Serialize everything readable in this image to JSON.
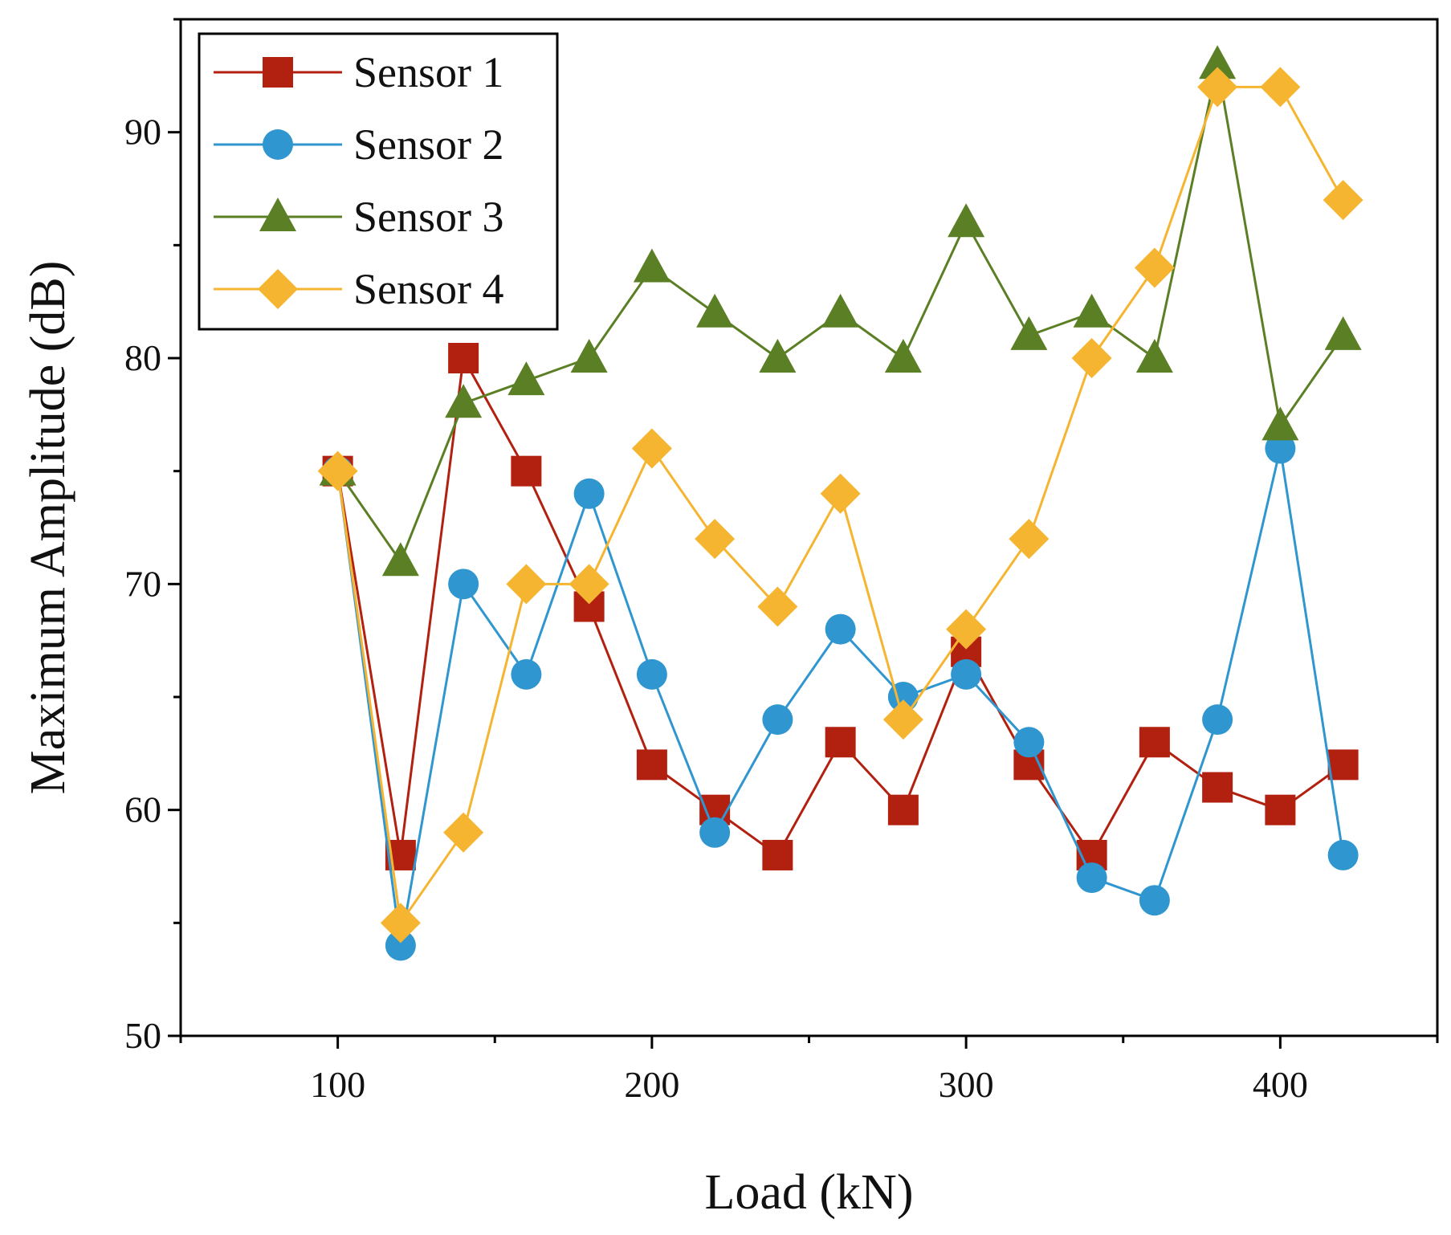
{
  "chart_data": {
    "type": "line",
    "title": "",
    "xlabel": "Load (kN)",
    "ylabel": "Maximum Amplitude (dB)",
    "xlim": [
      50,
      450
    ],
    "ylim": [
      50,
      95
    ],
    "xticks": [
      100,
      200,
      300,
      400
    ],
    "yticks": [
      50,
      60,
      70,
      80,
      90
    ],
    "grid": false,
    "legend_position": "top-left",
    "x": [
      100,
      120,
      140,
      160,
      180,
      200,
      220,
      240,
      260,
      280,
      300,
      320,
      340,
      360,
      380,
      400,
      420
    ],
    "series": [
      {
        "name": "Sensor 1",
        "color": "#b22010",
        "marker": "square",
        "values": [
          75,
          58,
          80,
          75,
          69,
          62,
          60,
          58,
          63,
          60,
          67,
          62,
          58,
          63,
          61,
          60,
          62
        ]
      },
      {
        "name": "Sensor 2",
        "color": "#2f96cf",
        "marker": "circle",
        "values": [
          75,
          54,
          70,
          66,
          74,
          66,
          59,
          64,
          68,
          65,
          66,
          63,
          57,
          56,
          64,
          76,
          58
        ]
      },
      {
        "name": "Sensor 3",
        "color": "#5b7f24",
        "marker": "triangle",
        "values": [
          75,
          71,
          78,
          79,
          80,
          84,
          82,
          80,
          82,
          80,
          86,
          81,
          82,
          80,
          93,
          77,
          81
        ]
      },
      {
        "name": "Sensor 4",
        "color": "#f5b531",
        "marker": "diamond",
        "values": [
          75,
          55,
          59,
          70,
          70,
          76,
          72,
          69,
          74,
          64,
          68,
          72,
          80,
          84,
          92,
          92,
          87
        ]
      }
    ]
  }
}
